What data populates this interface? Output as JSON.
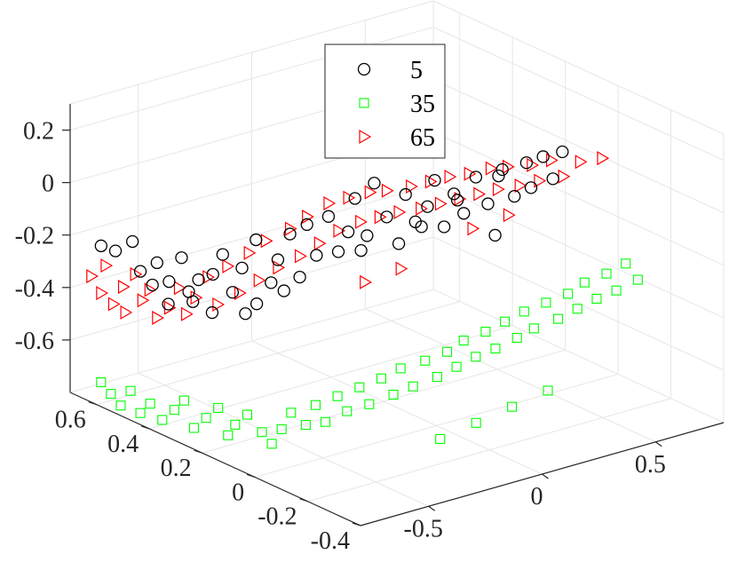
{
  "chart_data": {
    "type": "scatter",
    "view": "3d",
    "title": "",
    "xlabel": "",
    "ylabel": "",
    "zlabel": "",
    "grid": true,
    "legend_position": "top-center",
    "x_ticks": [
      "-0.5",
      "0",
      "0.5"
    ],
    "y_ticks": [
      "-0.4",
      "-0.2",
      "0",
      "0.2",
      "0.4",
      "0.6"
    ],
    "z_ticks": [
      "-0.6",
      "-0.4",
      "-0.2",
      "0",
      "0.2"
    ],
    "xlim": [
      -0.8,
      0.8
    ],
    "ylim": [
      -0.4,
      0.7
    ],
    "zlim": [
      -0.8,
      0.3
    ],
    "series": [
      {
        "name": "5",
        "marker": "circle",
        "color": "#000000",
        "points": [
          [
            -0.78,
            0.6,
            -0.2
          ],
          [
            -0.74,
            0.58,
            -0.22
          ],
          [
            -0.7,
            0.55,
            -0.18
          ],
          [
            -0.7,
            0.52,
            -0.28
          ],
          [
            -0.67,
            0.5,
            -0.33
          ],
          [
            -0.65,
            0.5,
            -0.25
          ],
          [
            -0.62,
            0.48,
            -0.32
          ],
          [
            -0.6,
            0.45,
            -0.22
          ],
          [
            -0.58,
            0.44,
            -0.35
          ],
          [
            -0.56,
            0.42,
            -0.3
          ],
          [
            -0.55,
            0.45,
            -0.4
          ],
          [
            -0.52,
            0.4,
            -0.28
          ],
          [
            -0.5,
            0.38,
            -0.2
          ],
          [
            -0.48,
            0.36,
            -0.34
          ],
          [
            -0.45,
            0.35,
            -0.25
          ],
          [
            -0.42,
            0.32,
            -0.38
          ],
          [
            -0.4,
            0.34,
            -0.15
          ],
          [
            -0.38,
            0.3,
            -0.3
          ],
          [
            -0.35,
            0.3,
            -0.22
          ],
          [
            -0.32,
            0.28,
            -0.12
          ],
          [
            -0.3,
            0.26,
            -0.28
          ],
          [
            -0.28,
            0.25,
            -0.08
          ],
          [
            -0.25,
            0.24,
            -0.2
          ],
          [
            -0.22,
            0.22,
            -0.05
          ],
          [
            -0.2,
            0.2,
            -0.18
          ],
          [
            -0.18,
            0.18,
            -0.1
          ],
          [
            -0.15,
            0.18,
            0.02
          ],
          [
            -0.12,
            0.16,
            -0.12
          ],
          [
            -0.1,
            0.15,
            0.08
          ],
          [
            -0.08,
            0.12,
            -0.04
          ],
          [
            -0.05,
            0.1,
            -0.14
          ],
          [
            -0.02,
            0.1,
            0.04
          ],
          [
            0.0,
            0.08,
            -0.06
          ],
          [
            0.03,
            0.06,
            0.0
          ],
          [
            0.05,
            0.05,
            0.1
          ],
          [
            0.08,
            0.04,
            -0.08
          ],
          [
            0.1,
            0.02,
            0.05
          ],
          [
            0.12,
            0.0,
            -0.02
          ],
          [
            0.15,
            -0.02,
            0.12
          ],
          [
            0.18,
            -0.04,
            0.02
          ],
          [
            0.2,
            -0.05,
            -0.1
          ],
          [
            0.22,
            -0.06,
            0.15
          ],
          [
            0.25,
            -0.08,
            0.05
          ],
          [
            0.28,
            -0.1,
            0.18
          ],
          [
            0.3,
            -0.1,
            0.08
          ],
          [
            0.33,
            -0.12,
            0.2
          ],
          [
            0.35,
            -0.14,
            0.12
          ],
          [
            0.38,
            -0.15,
            0.22
          ],
          [
            -0.6,
            0.5,
            -0.42
          ],
          [
            -0.5,
            0.42,
            -0.44
          ],
          [
            -0.4,
            0.38,
            -0.45
          ],
          [
            -0.3,
            0.32,
            -0.36
          ],
          [
            -0.1,
            0.2,
            -0.2
          ],
          [
            0.05,
            0.1,
            -0.1
          ],
          [
            0.15,
            0.05,
            0.0
          ],
          [
            0.25,
            -0.02,
            0.1
          ]
        ]
      },
      {
        "name": "35",
        "marker": "square",
        "color": "#00ff00",
        "points": [
          [
            -0.78,
            0.6,
            -0.72
          ],
          [
            -0.76,
            0.58,
            -0.76
          ],
          [
            -0.74,
            0.56,
            -0.8
          ],
          [
            -0.72,
            0.54,
            -0.74
          ],
          [
            -0.7,
            0.52,
            -0.82
          ],
          [
            -0.68,
            0.5,
            -0.78
          ],
          [
            -0.65,
            0.48,
            -0.84
          ],
          [
            -0.62,
            0.46,
            -0.8
          ],
          [
            -0.6,
            0.44,
            -0.76
          ],
          [
            -0.58,
            0.42,
            -0.86
          ],
          [
            -0.55,
            0.4,
            -0.82
          ],
          [
            -0.52,
            0.38,
            -0.78
          ],
          [
            -0.5,
            0.36,
            -0.88
          ],
          [
            -0.48,
            0.35,
            -0.84
          ],
          [
            -0.45,
            0.33,
            -0.8
          ],
          [
            -0.42,
            0.3,
            -0.86
          ],
          [
            -0.4,
            0.28,
            -0.9
          ],
          [
            -0.38,
            0.26,
            -0.84
          ],
          [
            -0.35,
            0.25,
            -0.78
          ],
          [
            -0.32,
            0.22,
            -0.82
          ],
          [
            -0.3,
            0.2,
            -0.74
          ],
          [
            -0.28,
            0.18,
            -0.8
          ],
          [
            -0.25,
            0.16,
            -0.7
          ],
          [
            -0.22,
            0.15,
            -0.76
          ],
          [
            -0.2,
            0.12,
            -0.66
          ],
          [
            -0.18,
            0.1,
            -0.72
          ],
          [
            -0.15,
            0.08,
            -0.62
          ],
          [
            -0.12,
            0.06,
            -0.68
          ],
          [
            -0.1,
            0.05,
            -0.58
          ],
          [
            -0.08,
            0.02,
            -0.64
          ],
          [
            -0.05,
            0.0,
            -0.54
          ],
          [
            -0.02,
            -0.02,
            -0.6
          ],
          [
            0.0,
            -0.04,
            -0.5
          ],
          [
            0.03,
            -0.05,
            -0.56
          ],
          [
            0.05,
            -0.06,
            -0.46
          ],
          [
            0.08,
            -0.08,
            -0.52
          ],
          [
            0.1,
            -0.1,
            -0.42
          ],
          [
            0.12,
            -0.12,
            -0.48
          ],
          [
            0.15,
            -0.13,
            -0.38
          ],
          [
            0.18,
            -0.15,
            -0.44
          ],
          [
            0.2,
            -0.16,
            -0.34
          ],
          [
            0.22,
            -0.18,
            -0.4
          ],
          [
            0.25,
            -0.2,
            -0.3
          ],
          [
            0.28,
            -0.22,
            -0.36
          ],
          [
            0.3,
            -0.24,
            -0.26
          ],
          [
            0.33,
            -0.25,
            -0.32
          ],
          [
            0.35,
            -0.26,
            -0.22
          ],
          [
            0.38,
            -0.28,
            -0.28
          ],
          [
            0.4,
            -0.3,
            -0.18
          ],
          [
            0.42,
            -0.32,
            -0.24
          ],
          [
            0.45,
            -0.33,
            -0.14
          ],
          [
            0.48,
            -0.35,
            -0.2
          ],
          [
            -0.1,
            -0.1,
            -0.78
          ],
          [
            0.0,
            -0.15,
            -0.72
          ],
          [
            0.1,
            -0.2,
            -0.66
          ],
          [
            0.2,
            -0.25,
            -0.6
          ]
        ]
      },
      {
        "name": "65",
        "marker": "triangle-right",
        "color": "#ff0000",
        "points": [
          [
            -0.8,
            0.62,
            -0.32
          ],
          [
            -0.78,
            0.6,
            -0.38
          ],
          [
            -0.76,
            0.6,
            -0.28
          ],
          [
            -0.75,
            0.58,
            -0.42
          ],
          [
            -0.73,
            0.56,
            -0.35
          ],
          [
            -0.72,
            0.56,
            -0.45
          ],
          [
            -0.7,
            0.54,
            -0.3
          ],
          [
            -0.68,
            0.53,
            -0.4
          ],
          [
            -0.66,
            0.52,
            -0.36
          ],
          [
            -0.65,
            0.5,
            -0.46
          ],
          [
            -0.62,
            0.48,
            -0.42
          ],
          [
            -0.6,
            0.46,
            -0.34
          ],
          [
            -0.58,
            0.45,
            -0.44
          ],
          [
            -0.55,
            0.44,
            -0.38
          ],
          [
            -0.52,
            0.42,
            -0.3
          ],
          [
            -0.5,
            0.4,
            -0.4
          ],
          [
            -0.48,
            0.38,
            -0.25
          ],
          [
            -0.45,
            0.36,
            -0.35
          ],
          [
            -0.42,
            0.35,
            -0.2
          ],
          [
            -0.4,
            0.33,
            -0.3
          ],
          [
            -0.38,
            0.32,
            -0.15
          ],
          [
            -0.35,
            0.3,
            -0.25
          ],
          [
            -0.32,
            0.28,
            -0.1
          ],
          [
            -0.3,
            0.26,
            -0.2
          ],
          [
            -0.28,
            0.25,
            -0.05
          ],
          [
            -0.25,
            0.23,
            -0.15
          ],
          [
            -0.22,
            0.22,
            0.0
          ],
          [
            -0.2,
            0.2,
            -0.1
          ],
          [
            -0.18,
            0.18,
            0.03
          ],
          [
            -0.15,
            0.16,
            -0.06
          ],
          [
            -0.12,
            0.15,
            0.05
          ],
          [
            -0.1,
            0.13,
            -0.04
          ],
          [
            -0.08,
            0.12,
            0.06
          ],
          [
            -0.05,
            0.1,
            -0.02
          ],
          [
            -0.02,
            0.08,
            0.08
          ],
          [
            0.0,
            0.06,
            0.0
          ],
          [
            0.03,
            0.05,
            0.1
          ],
          [
            0.05,
            0.03,
            0.02
          ],
          [
            0.08,
            0.02,
            0.12
          ],
          [
            0.1,
            0.0,
            0.04
          ],
          [
            0.12,
            -0.02,
            0.14
          ],
          [
            0.15,
            -0.03,
            0.06
          ],
          [
            0.18,
            -0.05,
            0.16
          ],
          [
            0.2,
            -0.06,
            0.08
          ],
          [
            0.22,
            -0.08,
            0.17
          ],
          [
            0.25,
            -0.1,
            0.1
          ],
          [
            0.28,
            -0.12,
            0.18
          ],
          [
            0.3,
            -0.13,
            0.12
          ],
          [
            0.33,
            -0.15,
            0.2
          ],
          [
            0.36,
            -0.17,
            0.14
          ],
          [
            0.4,
            -0.2,
            0.2
          ],
          [
            0.45,
            -0.24,
            0.22
          ],
          [
            -0.2,
            0.1,
            -0.25
          ],
          [
            -0.1,
            0.05,
            -0.2
          ],
          [
            0.1,
            -0.05,
            -0.05
          ],
          [
            0.2,
            -0.1,
            0.0
          ]
        ]
      }
    ]
  }
}
